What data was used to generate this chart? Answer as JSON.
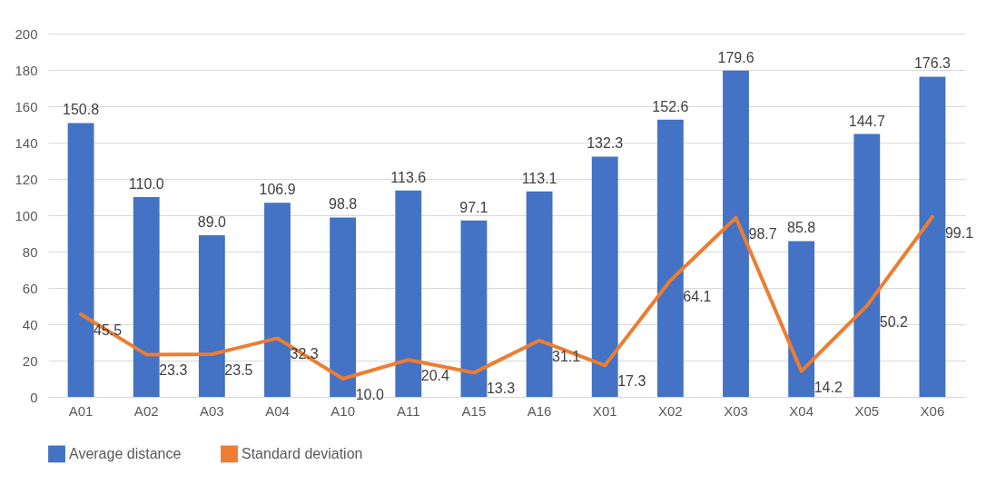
{
  "chart_data": {
    "type": "bar",
    "categories": [
      "A01",
      "A02",
      "A03",
      "A04",
      "A10",
      "A11",
      "A15",
      "A16",
      "X01",
      "X02",
      "X03",
      "X04",
      "X05",
      "X06"
    ],
    "series": [
      {
        "name": "Average distance",
        "color": "#4472c4",
        "values": [
          150.8,
          110.0,
          89.0,
          106.9,
          98.8,
          113.6,
          97.1,
          113.1,
          132.3,
          152.6,
          179.6,
          85.8,
          144.7,
          176.3
        ],
        "value_labels": [
          "150.8",
          "110.0",
          "89.0",
          "106.9",
          "98.8",
          "113.6",
          "97.1",
          "113.1",
          "132.3",
          "152.6",
          "179.6",
          "85.8",
          "144.7",
          "176.3"
        ]
      },
      {
        "name": "Standard deviation",
        "type": "line",
        "color": "#ed7d31",
        "values": [
          45.5,
          23.3,
          23.5,
          32.3,
          10.0,
          20.4,
          13.3,
          31.1,
          17.3,
          64.1,
          98.7,
          14.2,
          50.2,
          99.1
        ],
        "value_labels": [
          "45.5",
          "23.3",
          "23.5",
          "32.3",
          "10.0",
          "20.4",
          "13.3",
          "31.1",
          "17.3",
          "64.1",
          "98.7",
          "14.2",
          "50.2",
          "99.1"
        ]
      }
    ],
    "ylim": [
      0,
      200
    ],
    "yticks": [
      0,
      20,
      40,
      60,
      80,
      100,
      120,
      140,
      160,
      180,
      200
    ],
    "grid": "y",
    "legend": "bottom"
  }
}
